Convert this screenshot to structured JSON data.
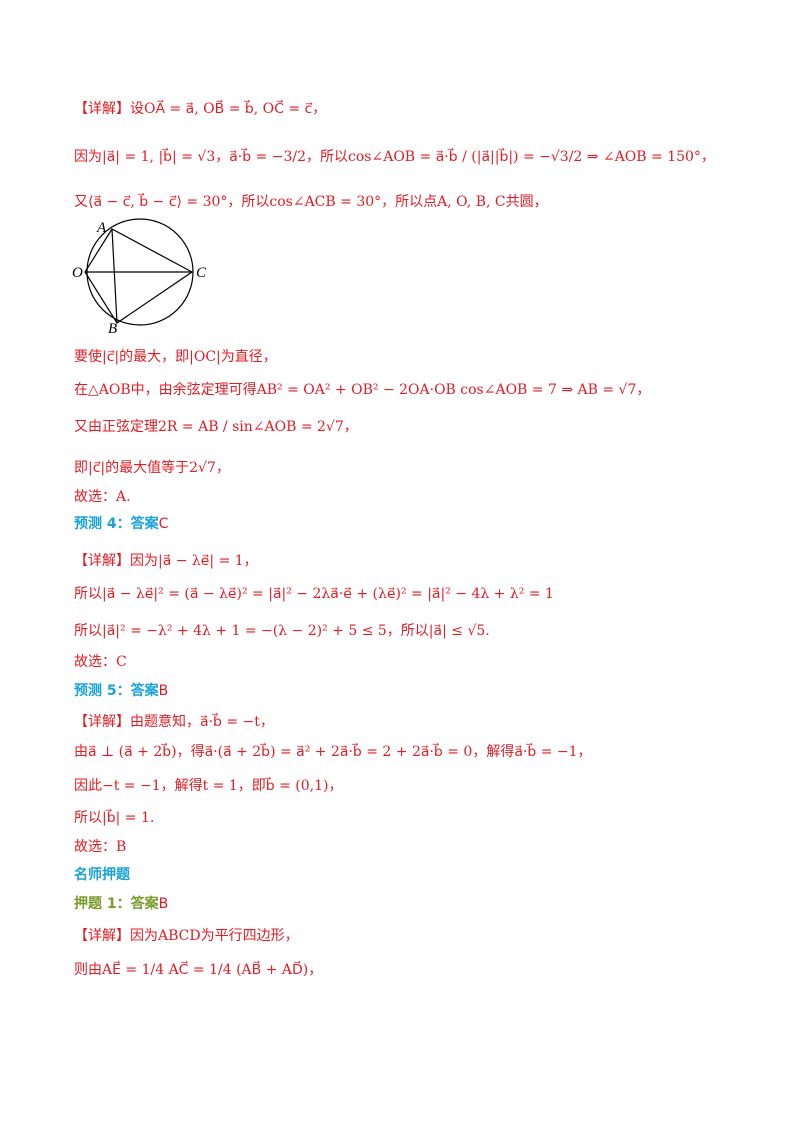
{
  "blocks": [
    {
      "text": "【详解】设OA⃗ = a⃗, OB⃗ = b⃗, OC⃗ = c⃗，"
    },
    {
      "text": "因为|a⃗| = 1, |b⃗| = √3，a⃗·b⃗ = −3/2，所以cos∠AOB = a⃗·b⃗ / (|a⃗||b⃗|) = −√3/2 ⇒ ∠AOB = 150°，"
    },
    {
      "text": "又⟨a⃗ − c⃗, b⃗ − c⃗⟩ = 30°，所以cos∠ACB = 30°，所以点A, O, B, C共圆，"
    },
    {
      "text": "要使|c⃗|的最大，即|OC|为直径，"
    },
    {
      "text": "在△AOB中，由余弦定理可得AB² = OA² + OB² − 2OA·OB cos∠AOB = 7 ⇒ AB = √7，"
    },
    {
      "text": "又由正弦定理2R = AB / sin∠AOB = 2√7，"
    },
    {
      "text": "即|c⃗|的最大值等于2√7，"
    },
    {
      "text": "故选：A."
    },
    {
      "heading": "预测 4：答案",
      "answer": "C"
    },
    {
      "text": "【详解】因为|a⃗ − λe⃗| = 1，"
    },
    {
      "text": "所以|a⃗ − λe⃗|² = (a⃗ − λe⃗)² = |a⃗|² − 2λa⃗·e⃗ + (λe⃗)² = |a⃗|² − 4λ + λ² = 1"
    },
    {
      "text": "所以|a⃗|² = −λ² + 4λ + 1 = −(λ − 2)² + 5 ≤ 5，所以|a⃗| ≤ √5."
    },
    {
      "text": "故选：C"
    },
    {
      "heading": "预测 5：答案",
      "answer": "B"
    },
    {
      "text": "【详解】由题意知，a⃗·b⃗ = −t，"
    },
    {
      "text": "由a⃗ ⊥ (a⃗ + 2b⃗)，得a⃗·(a⃗ + 2b⃗) = a⃗² + 2a⃗·b⃗ = 2 + 2a⃗·b⃗ = 0，解得a⃗·b⃗ = −1，"
    },
    {
      "text": "因此−t = −1，解得t = 1，即b⃗ = (0,1)，"
    },
    {
      "text": "所以|b⃗| = 1."
    },
    {
      "text": "故选：B"
    },
    {
      "section": "名师押题"
    },
    {
      "heading2": "押题 1：答案",
      "answer": "B"
    },
    {
      "text": "【详解】因为ABCD为平行四边形，"
    },
    {
      "text": "则由AE⃗ = 1/4 AC⃗ = 1/4 (AB⃗ + AD⃗)，"
    }
  ],
  "diagram": {
    "labels": [
      "A",
      "O",
      "B",
      "C"
    ]
  }
}
